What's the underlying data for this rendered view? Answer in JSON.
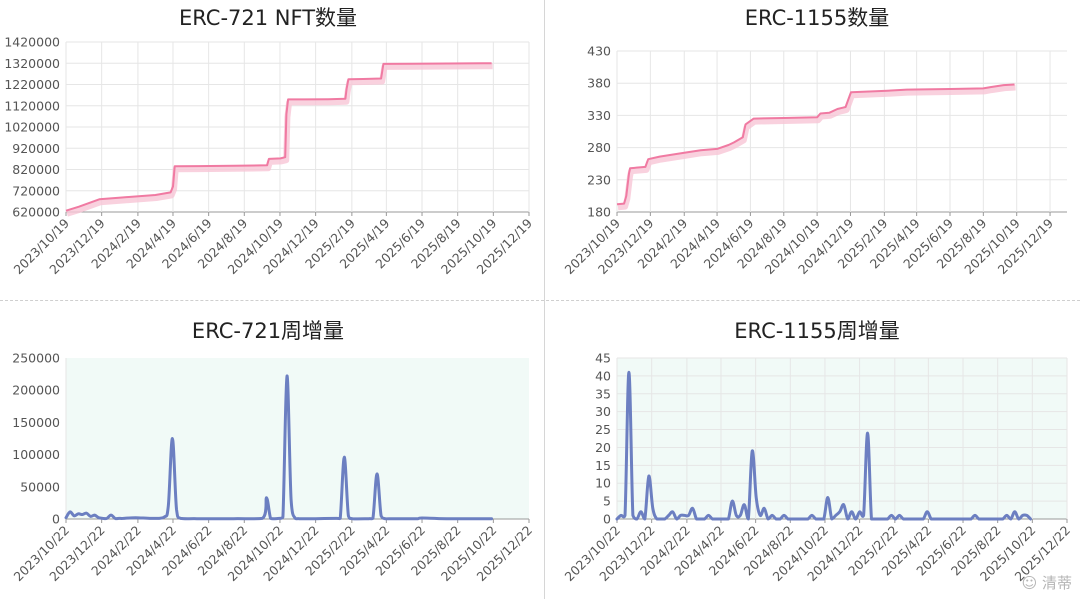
{
  "watermark": {
    "icon": "wechat-icon",
    "text": "清蒂"
  },
  "colors": {
    "cumulative_line": "#f07aa2",
    "cumulative_shadow": "#f8c6d6",
    "weekly_line": "#6c7fc1",
    "weekly_bg": "#f1faf7",
    "grid": "#e6e6e6",
    "axis": "#999999"
  },
  "chart_data": [
    {
      "id": "erc721-total",
      "type": "line",
      "title": "ERC-721 NFT数量",
      "xlabel": "",
      "ylabel": "",
      "ylim": [
        620000,
        1420000
      ],
      "yticks": [
        "620000",
        "720000",
        "820000",
        "920000",
        "1020000",
        "1120000",
        "1220000",
        "1320000",
        "1420000"
      ],
      "xlim": [
        "2023-10-19",
        "2025-12-19"
      ],
      "xticks": [
        "2023/10/19",
        "2023/12/19",
        "2024/2/19",
        "2024/4/19",
        "2024/6/19",
        "2024/8/19",
        "2024/10/19",
        "2024/12/19",
        "2025/2/19",
        "2025/4/19",
        "2025/6/19",
        "2025/8/19",
        "2025/10/19",
        "2025/12/19"
      ],
      "grid": true,
      "series": [
        {
          "x": [
            "2023-10-19",
            "2023-11-10",
            "2023-12-15",
            "2024-01-20",
            "2024-03-20",
            "2024-04-15",
            "2024-04-19",
            "2024-04-22",
            "2024-06-01",
            "2024-08-01",
            "2024-09-27",
            "2024-09-30",
            "2024-10-20",
            "2024-10-28",
            "2024-10-30",
            "2024-11-02",
            "2024-12-01",
            "2025-01-10",
            "2025-02-08",
            "2025-02-10",
            "2025-02-13",
            "2025-03-10",
            "2025-04-10",
            "2025-04-14",
            "2025-06-01",
            "2025-08-01",
            "2025-10-01",
            "2025-10-16"
          ],
          "values": [
            626000,
            645000,
            680000,
            688000,
            700000,
            712000,
            740000,
            835000,
            836000,
            838000,
            840000,
            870000,
            872000,
            878000,
            1080000,
            1150000,
            1150000,
            1151000,
            1153000,
            1200000,
            1245000,
            1246000,
            1248000,
            1317000,
            1318000,
            1319000,
            1320000,
            1320000
          ]
        }
      ]
    },
    {
      "id": "erc1155-total",
      "type": "line",
      "title": "ERC-1155数量",
      "xlabel": "",
      "ylabel": "",
      "ylim": [
        180,
        430
      ],
      "yticks": [
        "180",
        "230",
        "280",
        "330",
        "380",
        "430"
      ],
      "xlim": [
        "2023-10-19",
        "2026-01-19"
      ],
      "xticks": [
        "2023/10/19",
        "2023/12/19",
        "2024/2/19",
        "2024/4/19",
        "2024/6/19",
        "2024/8/19",
        "2024/10/19",
        "2024/12/19",
        "2025/2/19",
        "2025/4/19",
        "2025/6/19",
        "2025/8/19",
        "2025/10/19",
        "2025/12/19"
      ],
      "grid": true,
      "series": [
        {
          "x": [
            "2023-10-19",
            "2023-11-01",
            "2023-11-05",
            "2023-11-10",
            "2023-11-12",
            "2023-12-10",
            "2023-12-15",
            "2024-01-05",
            "2024-02-19",
            "2024-03-20",
            "2024-04-19",
            "2024-05-10",
            "2024-05-20",
            "2024-06-05",
            "2024-06-10",
            "2024-06-25",
            "2024-08-19",
            "2024-10-19",
            "2024-10-25",
            "2024-11-10",
            "2024-11-25",
            "2024-12-05",
            "2024-12-10",
            "2024-12-20",
            "2025-02-19",
            "2025-04-01",
            "2025-06-19",
            "2025-08-19",
            "2025-09-01",
            "2025-09-25",
            "2025-10-15"
          ],
          "values": [
            192,
            193,
            205,
            240,
            248,
            250,
            262,
            266,
            272,
            276,
            278,
            284,
            288,
            296,
            316,
            325,
            326,
            327,
            333,
            334,
            340,
            342,
            343,
            366,
            368,
            370,
            371,
            372,
            374,
            377,
            378
          ]
        }
      ]
    },
    {
      "id": "erc721-weekly",
      "type": "area",
      "title": "ERC-721周增量",
      "xlabel": "",
      "ylabel": "",
      "ylim": [
        0,
        250000
      ],
      "yticks": [
        "0",
        "50000",
        "100000",
        "150000",
        "200000",
        "250000"
      ],
      "xlim": [
        "2023-10-22",
        "2025-12-22"
      ],
      "xticks": [
        "2023/10/22",
        "2023/12/22",
        "2024/2/22",
        "2024/4/22",
        "2024/6/22",
        "2024/8/22",
        "2024/10/22",
        "2024/12/22",
        "2025/2/22",
        "2025/4/22",
        "2025/6/22",
        "2025/8/22",
        "2025/10/22",
        "2025/12/22"
      ],
      "grid": false,
      "series": [
        {
          "x": [
            "2023-10-22",
            "2023-10-29",
            "2023-11-05",
            "2023-11-12",
            "2023-11-19",
            "2023-11-26",
            "2023-12-03",
            "2023-12-10",
            "2023-12-17",
            "2023-12-24",
            "2023-12-31",
            "2024-01-07",
            "2024-01-14",
            "2024-01-21",
            "2024-01-28",
            "2024-02-18",
            "2024-03-17",
            "2024-04-07",
            "2024-04-14",
            "2024-04-21",
            "2024-04-28",
            "2024-05-05",
            "2024-06-02",
            "2024-08-04",
            "2024-09-22",
            "2024-09-29",
            "2024-10-06",
            "2024-10-13",
            "2024-10-20",
            "2024-10-27",
            "2024-11-03",
            "2024-11-10",
            "2024-11-17",
            "2024-11-24",
            "2024-12-22",
            "2025-01-26",
            "2025-02-02",
            "2025-02-09",
            "2025-02-16",
            "2025-02-23",
            "2025-03-23",
            "2025-03-30",
            "2025-04-06",
            "2025-04-13",
            "2025-04-20",
            "2025-04-27",
            "2025-06-01",
            "2025-06-15",
            "2025-06-22",
            "2025-08-03",
            "2025-10-19"
          ],
          "values": [
            2000,
            11000,
            5000,
            8000,
            7000,
            9000,
            4000,
            6000,
            2000,
            1000,
            1000,
            6000,
            1000,
            1000,
            1000,
            2000,
            1000,
            3000,
            20000,
            125000,
            15000,
            1000,
            500,
            500,
            1000,
            33000,
            1000,
            500,
            1000,
            3000,
            222000,
            30000,
            1000,
            500,
            500,
            1000,
            1000,
            96000,
            5000,
            500,
            500,
            1000,
            70000,
            5000,
            500,
            500,
            500,
            500,
            1500,
            500,
            500
          ]
        }
      ]
    },
    {
      "id": "erc1155-weekly",
      "type": "area",
      "title": "ERC-1155周增量",
      "xlabel": "",
      "ylabel": "",
      "ylim": [
        0,
        45
      ],
      "yticks": [
        "0",
        "5",
        "10",
        "15",
        "20",
        "25",
        "30",
        "35",
        "40",
        "45"
      ],
      "xlim": [
        "2023-10-22",
        "2025-12-22"
      ],
      "xticks": [
        "2023/10/22",
        "2023/12/22",
        "2024/2/22",
        "2024/4/22",
        "2024/6/22",
        "2024/8/22",
        "2024/10/22",
        "2024/12/22",
        "2025/2/22",
        "2025/4/22",
        "2025/6/22",
        "2025/8/22",
        "2025/10/22",
        "2025/12/22"
      ],
      "grid": true,
      "series": [
        {
          "x": [
            "2023-10-22",
            "2023-10-29",
            "2023-11-05",
            "2023-11-12",
            "2023-11-19",
            "2023-11-26",
            "2023-12-03",
            "2023-12-10",
            "2023-12-17",
            "2023-12-24",
            "2023-12-31",
            "2024-01-07",
            "2024-01-14",
            "2024-01-21",
            "2024-01-28",
            "2024-02-04",
            "2024-02-11",
            "2024-02-18",
            "2024-02-25",
            "2024-03-03",
            "2024-03-10",
            "2024-03-17",
            "2024-03-24",
            "2024-03-31",
            "2024-04-07",
            "2024-04-14",
            "2024-04-21",
            "2024-04-28",
            "2024-05-05",
            "2024-05-12",
            "2024-05-19",
            "2024-05-26",
            "2024-06-02",
            "2024-06-09",
            "2024-06-16",
            "2024-06-23",
            "2024-06-30",
            "2024-07-07",
            "2024-07-14",
            "2024-07-21",
            "2024-07-28",
            "2024-08-04",
            "2024-08-11",
            "2024-08-18",
            "2024-08-25",
            "2024-09-01",
            "2024-09-08",
            "2024-09-15",
            "2024-09-22",
            "2024-09-29",
            "2024-10-06",
            "2024-10-13",
            "2024-10-20",
            "2024-10-27",
            "2024-11-03",
            "2024-11-10",
            "2024-11-17",
            "2024-11-24",
            "2024-12-01",
            "2024-12-08",
            "2024-12-15",
            "2024-12-22",
            "2024-12-29",
            "2025-01-05",
            "2025-01-12",
            "2025-01-19",
            "2025-01-26",
            "2025-02-02",
            "2025-02-09",
            "2025-02-16",
            "2025-02-23",
            "2025-03-02",
            "2025-03-09",
            "2025-03-16",
            "2025-03-23",
            "2025-03-30",
            "2025-04-06",
            "2025-04-13",
            "2025-04-20",
            "2025-04-27",
            "2025-05-04",
            "2025-05-11",
            "2025-05-18",
            "2025-05-25",
            "2025-06-01",
            "2025-06-08",
            "2025-06-15",
            "2025-06-22",
            "2025-06-29",
            "2025-07-06",
            "2025-07-13",
            "2025-07-20",
            "2025-07-27",
            "2025-08-03",
            "2025-08-10",
            "2025-08-17",
            "2025-08-24",
            "2025-08-31",
            "2025-09-07",
            "2025-09-14",
            "2025-09-21",
            "2025-09-28",
            "2025-10-05",
            "2025-10-12",
            "2025-10-19"
          ],
          "values": [
            0,
            1,
            1,
            41,
            1,
            0,
            2,
            0,
            12,
            3,
            0,
            0,
            0,
            1,
            2,
            0,
            1,
            1,
            1,
            3,
            0,
            0,
            0,
            1,
            0,
            0,
            0,
            0,
            0,
            5,
            1,
            1,
            4,
            0,
            19,
            6,
            1,
            3,
            0,
            1,
            0,
            0,
            1,
            0,
            0,
            0,
            0,
            0,
            0,
            1,
            0,
            0,
            0,
            6,
            0,
            1,
            2,
            4,
            0,
            2,
            0,
            2,
            1,
            24,
            0,
            0,
            0,
            0,
            0,
            1,
            0,
            1,
            0,
            0,
            0,
            0,
            0,
            0,
            2,
            0,
            0,
            0,
            0,
            0,
            0,
            0,
            0,
            0,
            0,
            0,
            1,
            0,
            0,
            0,
            0,
            0,
            0,
            0,
            1,
            0,
            2,
            0,
            1,
            1,
            0
          ]
        }
      ]
    }
  ]
}
